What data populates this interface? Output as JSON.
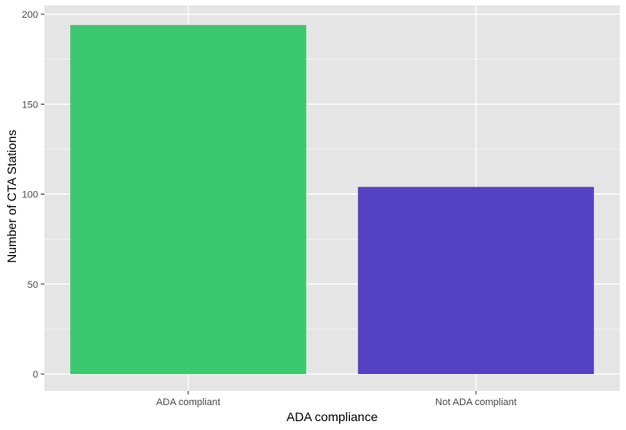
{
  "chart_data": {
    "type": "bar",
    "categories": [
      "ADA compliant",
      "Not ADA compliant"
    ],
    "values": [
      194,
      104
    ],
    "colors": [
      "#3CC86F",
      "#5441C4"
    ],
    "xlabel": "ADA compliance",
    "ylabel": "Number of CTA Stations",
    "ylim": [
      0,
      200
    ],
    "yticks": [
      0,
      50,
      100,
      150,
      200
    ],
    "grid": true,
    "legend": "none",
    "panel_background": "#E5E5E5",
    "gridline_color": "#FFFFFF"
  }
}
